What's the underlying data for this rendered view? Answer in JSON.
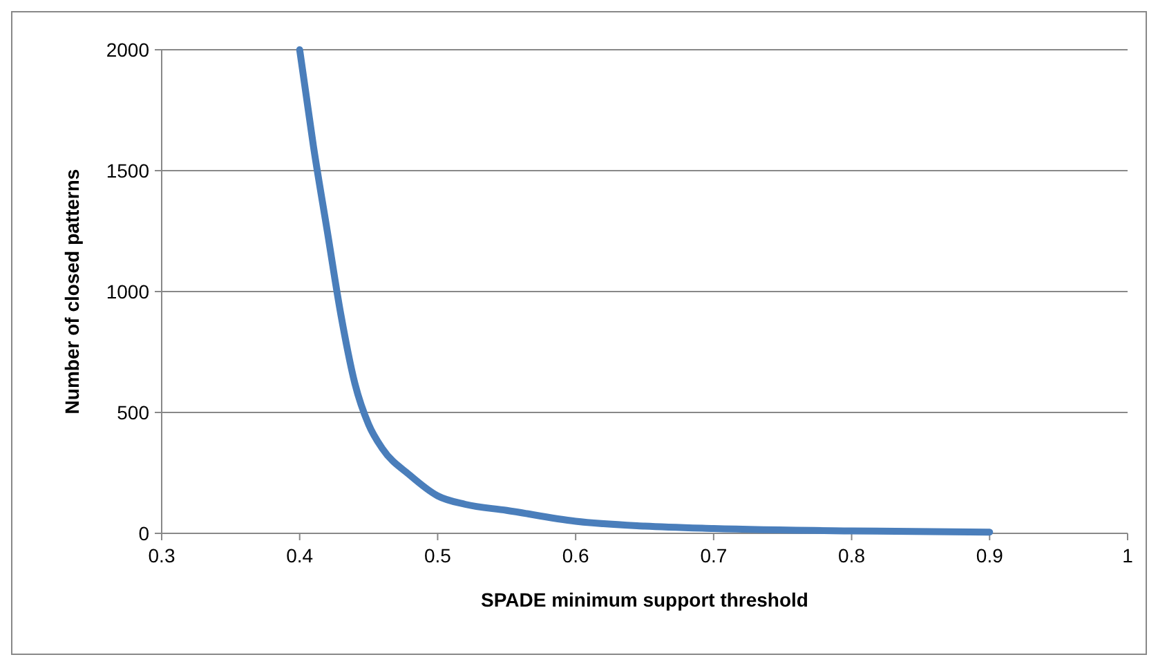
{
  "chart_data": {
    "type": "line",
    "xlabel": "SPADE minimum support threshold",
    "ylabel": "Number of closed patterns",
    "series": [
      {
        "color": "#4a7ebb",
        "x": [
          0.4,
          0.41,
          0.42,
          0.43,
          0.44,
          0.45,
          0.46,
          0.48,
          0.5,
          0.52,
          0.55,
          0.6,
          0.65,
          0.7,
          0.8,
          0.9
        ],
        "values": [
          2000,
          1600,
          1250,
          900,
          620,
          450,
          350,
          240,
          155,
          120,
          95,
          50,
          30,
          20,
          10,
          5
        ]
      }
    ],
    "xlim": [
      0.3,
      1
    ],
    "xticks": [
      0.3,
      0.4,
      0.5,
      0.6,
      0.7,
      0.8,
      0.9,
      1
    ],
    "ylim": [
      0,
      2000
    ],
    "yticks": [
      0,
      500,
      1000,
      1500,
      2000
    ],
    "grid": "y",
    "marker": "none",
    "line_style": "solid"
  }
}
